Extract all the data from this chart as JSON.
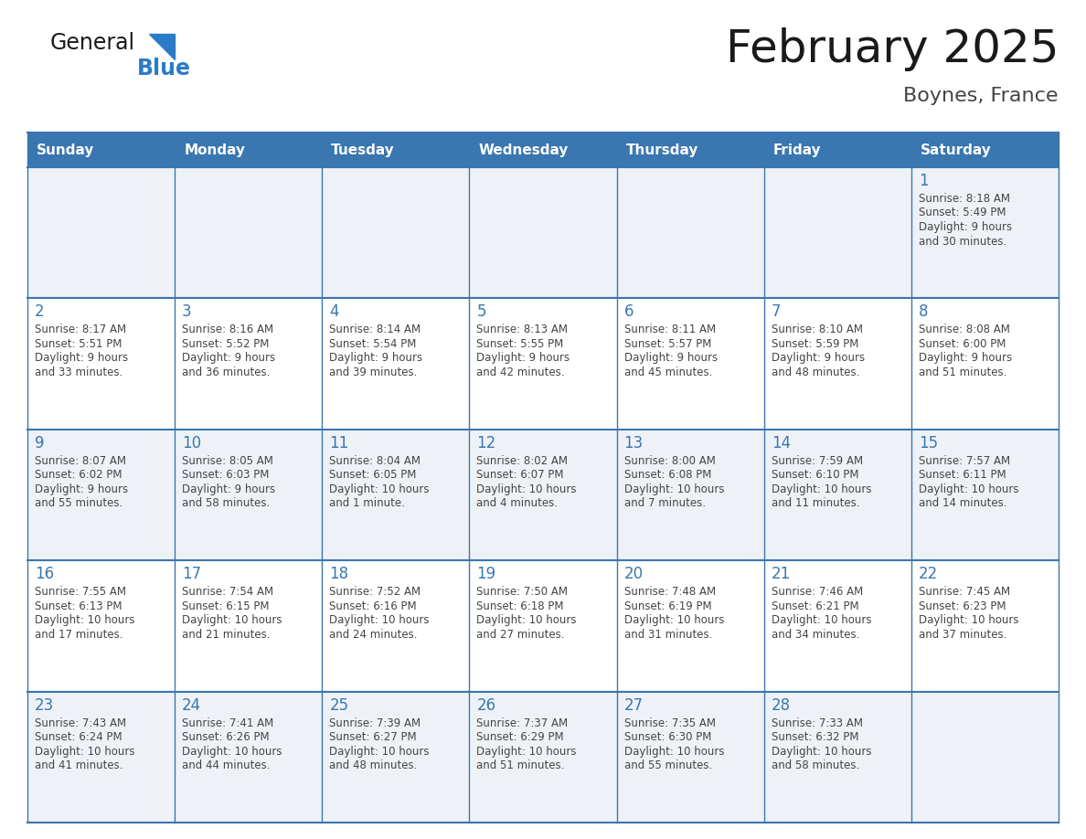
{
  "title": "February 2025",
  "subtitle": "Boynes, France",
  "days_of_week": [
    "Sunday",
    "Monday",
    "Tuesday",
    "Wednesday",
    "Thursday",
    "Friday",
    "Saturday"
  ],
  "header_bg": "#3a76b0",
  "header_text_color": "#ffffff",
  "cell_bg_light": "#eef2f7",
  "cell_bg_white": "#ffffff",
  "border_color": "#3a76b0",
  "day_number_color": "#3a76b0",
  "info_text_color": "#444444",
  "title_color": "#1a1a1a",
  "subtitle_color": "#444444",
  "logo_general_color": "#1a1a1a",
  "logo_blue_color": "#2b7bc8",
  "calendar_data": [
    [
      null,
      null,
      null,
      null,
      null,
      null,
      {
        "day": "1",
        "sunrise": "8:18 AM",
        "sunset": "5:49 PM",
        "daylight_line1": "9 hours",
        "daylight_line2": "and 30 minutes."
      }
    ],
    [
      {
        "day": "2",
        "sunrise": "8:17 AM",
        "sunset": "5:51 PM",
        "daylight_line1": "9 hours",
        "daylight_line2": "and 33 minutes."
      },
      {
        "day": "3",
        "sunrise": "8:16 AM",
        "sunset": "5:52 PM",
        "daylight_line1": "9 hours",
        "daylight_line2": "and 36 minutes."
      },
      {
        "day": "4",
        "sunrise": "8:14 AM",
        "sunset": "5:54 PM",
        "daylight_line1": "9 hours",
        "daylight_line2": "and 39 minutes."
      },
      {
        "day": "5",
        "sunrise": "8:13 AM",
        "sunset": "5:55 PM",
        "daylight_line1": "9 hours",
        "daylight_line2": "and 42 minutes."
      },
      {
        "day": "6",
        "sunrise": "8:11 AM",
        "sunset": "5:57 PM",
        "daylight_line1": "9 hours",
        "daylight_line2": "and 45 minutes."
      },
      {
        "day": "7",
        "sunrise": "8:10 AM",
        "sunset": "5:59 PM",
        "daylight_line1": "9 hours",
        "daylight_line2": "and 48 minutes."
      },
      {
        "day": "8",
        "sunrise": "8:08 AM",
        "sunset": "6:00 PM",
        "daylight_line1": "9 hours",
        "daylight_line2": "and 51 minutes."
      }
    ],
    [
      {
        "day": "9",
        "sunrise": "8:07 AM",
        "sunset": "6:02 PM",
        "daylight_line1": "9 hours",
        "daylight_line2": "and 55 minutes."
      },
      {
        "day": "10",
        "sunrise": "8:05 AM",
        "sunset": "6:03 PM",
        "daylight_line1": "9 hours",
        "daylight_line2": "and 58 minutes."
      },
      {
        "day": "11",
        "sunrise": "8:04 AM",
        "sunset": "6:05 PM",
        "daylight_line1": "10 hours",
        "daylight_line2": "and 1 minute."
      },
      {
        "day": "12",
        "sunrise": "8:02 AM",
        "sunset": "6:07 PM",
        "daylight_line1": "10 hours",
        "daylight_line2": "and 4 minutes."
      },
      {
        "day": "13",
        "sunrise": "8:00 AM",
        "sunset": "6:08 PM",
        "daylight_line1": "10 hours",
        "daylight_line2": "and 7 minutes."
      },
      {
        "day": "14",
        "sunrise": "7:59 AM",
        "sunset": "6:10 PM",
        "daylight_line1": "10 hours",
        "daylight_line2": "and 11 minutes."
      },
      {
        "day": "15",
        "sunrise": "7:57 AM",
        "sunset": "6:11 PM",
        "daylight_line1": "10 hours",
        "daylight_line2": "and 14 minutes."
      }
    ],
    [
      {
        "day": "16",
        "sunrise": "7:55 AM",
        "sunset": "6:13 PM",
        "daylight_line1": "10 hours",
        "daylight_line2": "and 17 minutes."
      },
      {
        "day": "17",
        "sunrise": "7:54 AM",
        "sunset": "6:15 PM",
        "daylight_line1": "10 hours",
        "daylight_line2": "and 21 minutes."
      },
      {
        "day": "18",
        "sunrise": "7:52 AM",
        "sunset": "6:16 PM",
        "daylight_line1": "10 hours",
        "daylight_line2": "and 24 minutes."
      },
      {
        "day": "19",
        "sunrise": "7:50 AM",
        "sunset": "6:18 PM",
        "daylight_line1": "10 hours",
        "daylight_line2": "and 27 minutes."
      },
      {
        "day": "20",
        "sunrise": "7:48 AM",
        "sunset": "6:19 PM",
        "daylight_line1": "10 hours",
        "daylight_line2": "and 31 minutes."
      },
      {
        "day": "21",
        "sunrise": "7:46 AM",
        "sunset": "6:21 PM",
        "daylight_line1": "10 hours",
        "daylight_line2": "and 34 minutes."
      },
      {
        "day": "22",
        "sunrise": "7:45 AM",
        "sunset": "6:23 PM",
        "daylight_line1": "10 hours",
        "daylight_line2": "and 37 minutes."
      }
    ],
    [
      {
        "day": "23",
        "sunrise": "7:43 AM",
        "sunset": "6:24 PM",
        "daylight_line1": "10 hours",
        "daylight_line2": "and 41 minutes."
      },
      {
        "day": "24",
        "sunrise": "7:41 AM",
        "sunset": "6:26 PM",
        "daylight_line1": "10 hours",
        "daylight_line2": "and 44 minutes."
      },
      {
        "day": "25",
        "sunrise": "7:39 AM",
        "sunset": "6:27 PM",
        "daylight_line1": "10 hours",
        "daylight_line2": "and 48 minutes."
      },
      {
        "day": "26",
        "sunrise": "7:37 AM",
        "sunset": "6:29 PM",
        "daylight_line1": "10 hours",
        "daylight_line2": "and 51 minutes."
      },
      {
        "day": "27",
        "sunrise": "7:35 AM",
        "sunset": "6:30 PM",
        "daylight_line1": "10 hours",
        "daylight_line2": "and 55 minutes."
      },
      {
        "day": "28",
        "sunrise": "7:33 AM",
        "sunset": "6:32 PM",
        "daylight_line1": "10 hours",
        "daylight_line2": "and 58 minutes."
      },
      null
    ]
  ]
}
